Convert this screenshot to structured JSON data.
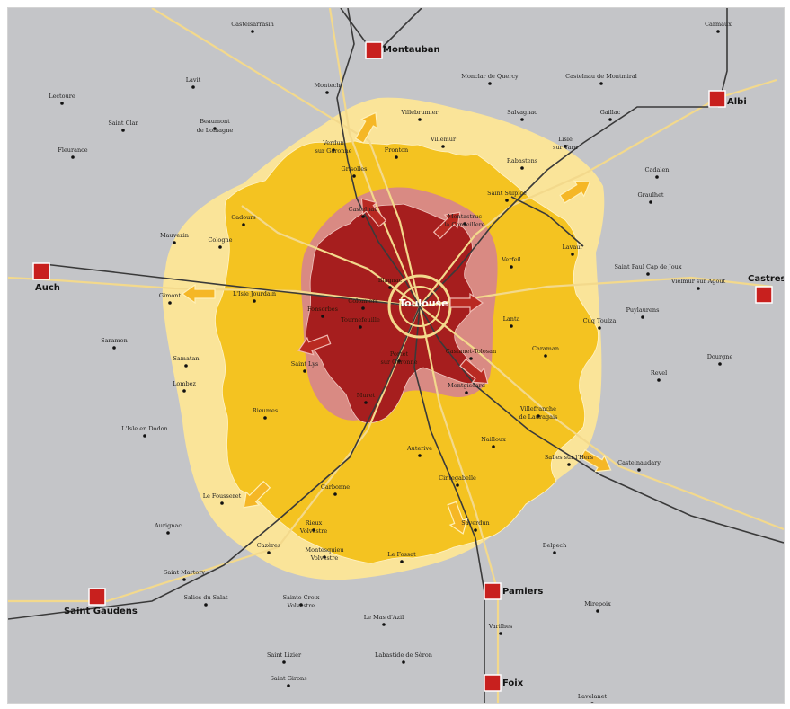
{
  "colors": {
    "background": "#c4c5c8",
    "outer_zone": "#fae499",
    "middle_zone": "#f4c321",
    "inner_zone_light": "#d98a83",
    "inner_zone_dark": "#a61e1e",
    "rail_line": "#3a3a3a",
    "road_line": "#f3d98c",
    "city_marker": "#c8201e",
    "growth_arrow_orange": "#f5b726",
    "growth_arrow_red": "#b92a22"
  },
  "center_city": {
    "name": "Toulouse"
  },
  "major_cities": [
    {
      "id": "montauban",
      "name": "Montauban"
    },
    {
      "id": "albi",
      "name": "Albi"
    },
    {
      "id": "auch",
      "name": "Auch"
    },
    {
      "id": "castres",
      "name": "Castres"
    },
    {
      "id": "saint-gaudens",
      "name": "Saint Gaudens"
    },
    {
      "id": "pamiers",
      "name": "Pamiers"
    },
    {
      "id": "foix",
      "name": "Foix"
    }
  ],
  "towns": [
    {
      "id": "carmaux",
      "name": "Carmaux"
    },
    {
      "id": "castelsarrasin",
      "name": "Castelsarrasin"
    },
    {
      "id": "lectoure",
      "name": "Lectoure"
    },
    {
      "id": "lavit",
      "name": "Lavit"
    },
    {
      "id": "montech",
      "name": "Montech"
    },
    {
      "id": "monclar",
      "name": "Monclar de Quercy"
    },
    {
      "id": "castelnau-montmiral",
      "name": "Castelnau de Montmiral"
    },
    {
      "id": "saint-clar",
      "name": "Saint Clar"
    },
    {
      "id": "beaumont-1",
      "name": "Beaumont"
    },
    {
      "id": "beaumont-2",
      "name": "de Lomagne"
    },
    {
      "id": "villebrumier",
      "name": "Villebrumier"
    },
    {
      "id": "salvagnac",
      "name": "Salvagnac"
    },
    {
      "id": "gaillac",
      "name": "Gaillac"
    },
    {
      "id": "fleurance",
      "name": "Fleurance"
    },
    {
      "id": "verdun-1",
      "name": "Verdun"
    },
    {
      "id": "verdun-2",
      "name": "sur Garonne"
    },
    {
      "id": "villemur",
      "name": "Villemur"
    },
    {
      "id": "lisle-1",
      "name": "Lisle"
    },
    {
      "id": "lisle-2",
      "name": "sur Tarn"
    },
    {
      "id": "fronton",
      "name": "Fronton"
    },
    {
      "id": "grisolles",
      "name": "Grisolles"
    },
    {
      "id": "rabastens",
      "name": "Rabastens"
    },
    {
      "id": "cadalen",
      "name": "Cadalen"
    },
    {
      "id": "saint-sulpice",
      "name": "Saint Sulpice"
    },
    {
      "id": "graulhet",
      "name": "Graulhet"
    },
    {
      "id": "castelnau-estretefonds",
      "name": "Castelnau"
    },
    {
      "id": "cadours",
      "name": "Cadours"
    },
    {
      "id": "mauvezin",
      "name": "Mauvezin"
    },
    {
      "id": "cologne",
      "name": "Cologne"
    },
    {
      "id": "montastruc-1",
      "name": "Montastruc"
    },
    {
      "id": "montastruc-2",
      "name": "la Conseillere"
    },
    {
      "id": "lavaur",
      "name": "Lavaur"
    },
    {
      "id": "verfeil",
      "name": "Verfeil"
    },
    {
      "id": "saint-paul",
      "name": "Saint Paul Cap de Joux"
    },
    {
      "id": "vielmur",
      "name": "Vielmur sur Agout"
    },
    {
      "id": "gimont",
      "name": "Gimont"
    },
    {
      "id": "lisle-jourdain",
      "name": "L'Isle Jourdain"
    },
    {
      "id": "puylaurens",
      "name": "Puylaurens"
    },
    {
      "id": "blagnac",
      "name": "Blagnac"
    },
    {
      "id": "colomiers",
      "name": "Colomiers"
    },
    {
      "id": "fonsorbes",
      "name": "Fonsorbes"
    },
    {
      "id": "tournefeuille",
      "name": "Tournefeuille"
    },
    {
      "id": "lanta",
      "name": "Lanta"
    },
    {
      "id": "caraman",
      "name": "Caraman"
    },
    {
      "id": "cuq-toulza",
      "name": "Cuq Toulza"
    },
    {
      "id": "saramon",
      "name": "Saramon"
    },
    {
      "id": "samatan",
      "name": "Samatan"
    },
    {
      "id": "lombez",
      "name": "Lombez"
    },
    {
      "id": "saint-lys",
      "name": "Saint Lys"
    },
    {
      "id": "castanet",
      "name": "Castanet-Tolosan"
    },
    {
      "id": "portet-1",
      "name": "Portet"
    },
    {
      "id": "portet-2",
      "name": "sur Garonne"
    },
    {
      "id": "montgiscard",
      "name": "Montgiscard"
    },
    {
      "id": "dourgne",
      "name": "Dourgne"
    },
    {
      "id": "revel",
      "name": "Revel"
    },
    {
      "id": "muret",
      "name": "Muret"
    },
    {
      "id": "villefranche-1",
      "name": "Villefranche"
    },
    {
      "id": "villefranche-2",
      "name": "de Lauragais"
    },
    {
      "id": "rieumes",
      "name": "Rieumes"
    },
    {
      "id": "lisle-en-dodon",
      "name": "L'Isle en Dodon"
    },
    {
      "id": "nailloux",
      "name": "Nailloux"
    },
    {
      "id": "auterive",
      "name": "Auterive"
    },
    {
      "id": "cintegabelle",
      "name": "Cintegabelle"
    },
    {
      "id": "castelnaudary",
      "name": "Castelnaudary"
    },
    {
      "id": "salles-sur-lhers",
      "name": "Salles sur l'Hers"
    },
    {
      "id": "le-fousseret",
      "name": "Le Fousseret"
    },
    {
      "id": "carbonne",
      "name": "Carbonne"
    },
    {
      "id": "aurignac",
      "name": "Aurignac"
    },
    {
      "id": "rieux-1",
      "name": "Rieux"
    },
    {
      "id": "rieux-2",
      "name": "Volvestre"
    },
    {
      "id": "saverdun",
      "name": "Saverdun"
    },
    {
      "id": "belpech",
      "name": "Belpech"
    },
    {
      "id": "cazeres",
      "name": "Cazères"
    },
    {
      "id": "montesquieu-1",
      "name": "Montesquieu"
    },
    {
      "id": "montesquieu-2",
      "name": "Volvestre"
    },
    {
      "id": "le-fossat",
      "name": "Le Fossat"
    },
    {
      "id": "saint-martory",
      "name": "Saint Martory"
    },
    {
      "id": "salies-du-salat",
      "name": "Salies du Salat"
    },
    {
      "id": "sainte-croix-1",
      "name": "Sainte Croix"
    },
    {
      "id": "sainte-croix-2",
      "name": "Volvestre"
    },
    {
      "id": "le-mas-dazil",
      "name": "Le Mas d'Azil"
    },
    {
      "id": "mirepoix",
      "name": "Mirepoix"
    },
    {
      "id": "varilhes",
      "name": "Varilhes"
    },
    {
      "id": "saint-lizier",
      "name": "Saint Lizier"
    },
    {
      "id": "labastide-de-seron",
      "name": "Labastide de Sèron"
    },
    {
      "id": "saint-girons",
      "name": "Saint Girons"
    },
    {
      "id": "lavelanet",
      "name": "Lavelanet"
    }
  ]
}
